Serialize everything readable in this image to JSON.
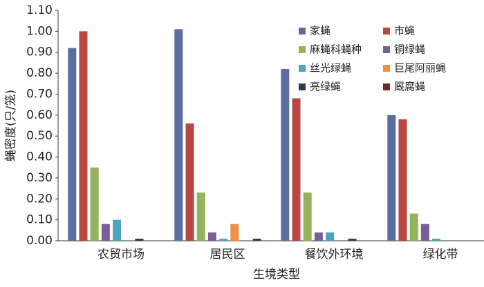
{
  "chart_data": {
    "type": "bar",
    "x_label": "生境类型",
    "y_label": "蝇密度(只/笼)",
    "categories": [
      "农贸市场",
      "居民区",
      "餐饮外环境",
      "绿化带"
    ],
    "series": [
      {
        "name": "家蝇",
        "color": "#5b6ea0",
        "values": [
          0.92,
          1.01,
          0.82,
          0.6
        ]
      },
      {
        "name": "市蝇",
        "color": "#b9473f",
        "values": [
          1.0,
          0.56,
          0.68,
          0.58
        ]
      },
      {
        "name": "麻蝇科蝇种",
        "color": "#95b35a",
        "values": [
          0.35,
          0.23,
          0.23,
          0.13
        ]
      },
      {
        "name": "铜绿蝇",
        "color": "#7a5e98",
        "values": [
          0.08,
          0.04,
          0.04,
          0.08
        ]
      },
      {
        "name": "丝光绿蝇",
        "color": "#4aa6bf",
        "values": [
          0.1,
          0.01,
          0.04,
          0.01
        ]
      },
      {
        "name": "巨尾阿丽蝇",
        "color": "#f28e45",
        "values": [
          0,
          0.08,
          0,
          0
        ]
      },
      {
        "name": "亮绿蝇",
        "color": "#2c3b57",
        "values": [
          0.01,
          0,
          0.01,
          0
        ]
      },
      {
        "name": "厩腐蝇",
        "color": "#6b2a25",
        "values": [
          0,
          0.01,
          0,
          0
        ]
      }
    ],
    "ylim": [
      0,
      1.1
    ],
    "yticks": [
      {
        "value": 0,
        "label": "0.00"
      },
      {
        "value": 0.1,
        "label": "0.10"
      },
      {
        "value": 0.2,
        "label": "0.20"
      },
      {
        "value": 0.3,
        "label": "0.30"
      },
      {
        "value": 0.4,
        "label": "0.40"
      },
      {
        "value": 0.5,
        "label": "0.50"
      },
      {
        "value": 0.6,
        "label": "0.60"
      },
      {
        "value": 0.7,
        "label": "0.70"
      },
      {
        "value": 0.8,
        "label": "0.80"
      },
      {
        "value": 0.9,
        "label": "0.90"
      },
      {
        "value": 1.0,
        "label": "1.00"
      },
      {
        "value": 1.1,
        "label": "1.10"
      }
    ],
    "legend": "upper-right"
  }
}
